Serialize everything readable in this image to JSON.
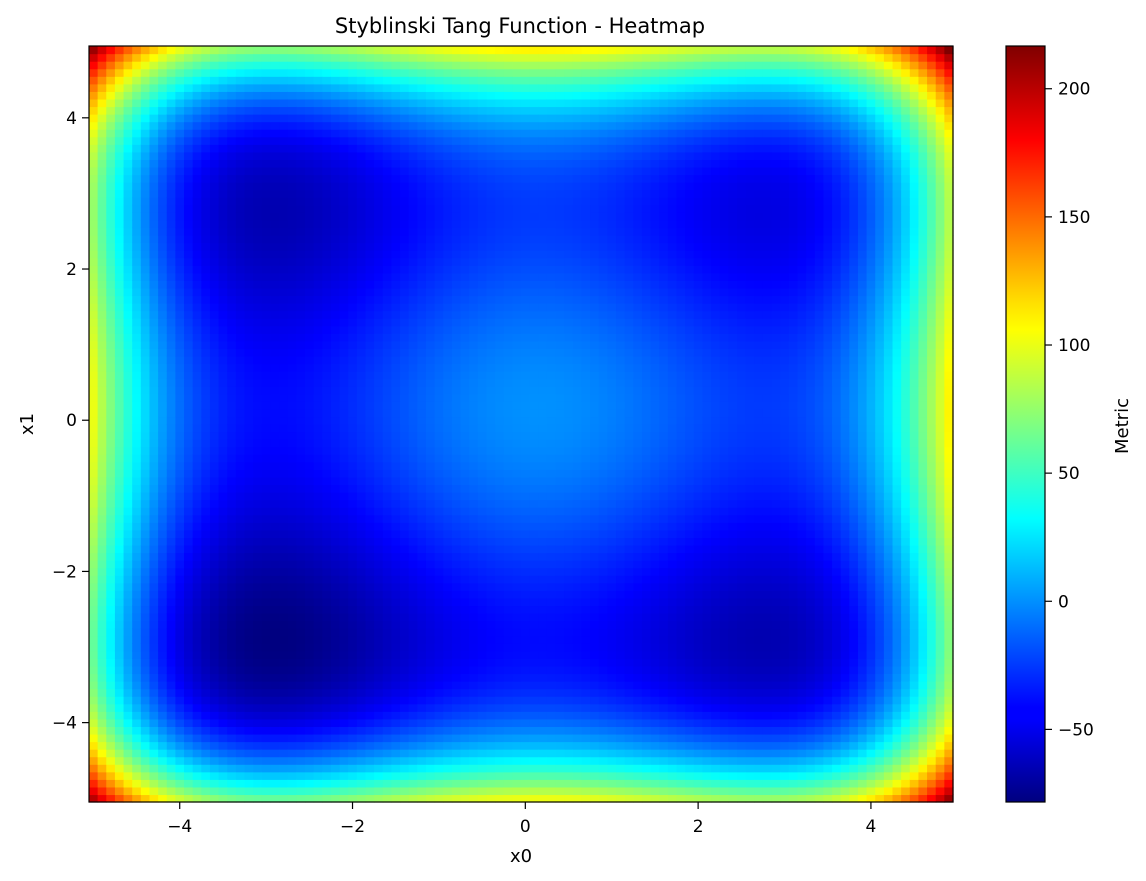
{
  "chart_data": {
    "type": "heatmap",
    "title": "Styblinski Tang Function - Heatmap",
    "xlabel": "x0",
    "ylabel": "x1",
    "function": "0.5 * sum(x_i^4 - 16 x_i^2 + 5 x_i)",
    "xlim": [
      -5,
      4.9
    ],
    "ylim": [
      -5,
      4.9
    ],
    "grid_step": 0.1,
    "x_ticks": [
      -4,
      -2,
      0,
      2,
      4
    ],
    "y_ticks": [
      -4,
      -2,
      0,
      2,
      4
    ],
    "x_tick_labels": [
      "−4",
      "−2",
      "0",
      "2",
      "4"
    ],
    "y_tick_labels": [
      "−4",
      "−2",
      "0",
      "2",
      "4"
    ],
    "colormap": "jet",
    "colorbar": {
      "label": "Metric",
      "vmin": -78.33,
      "vmax": 216.68,
      "ticks": [
        -50,
        0,
        50,
        100,
        150,
        200
      ],
      "tick_labels": [
        "−50",
        "0",
        "50",
        "100",
        "150",
        "200"
      ]
    },
    "grid": false
  }
}
